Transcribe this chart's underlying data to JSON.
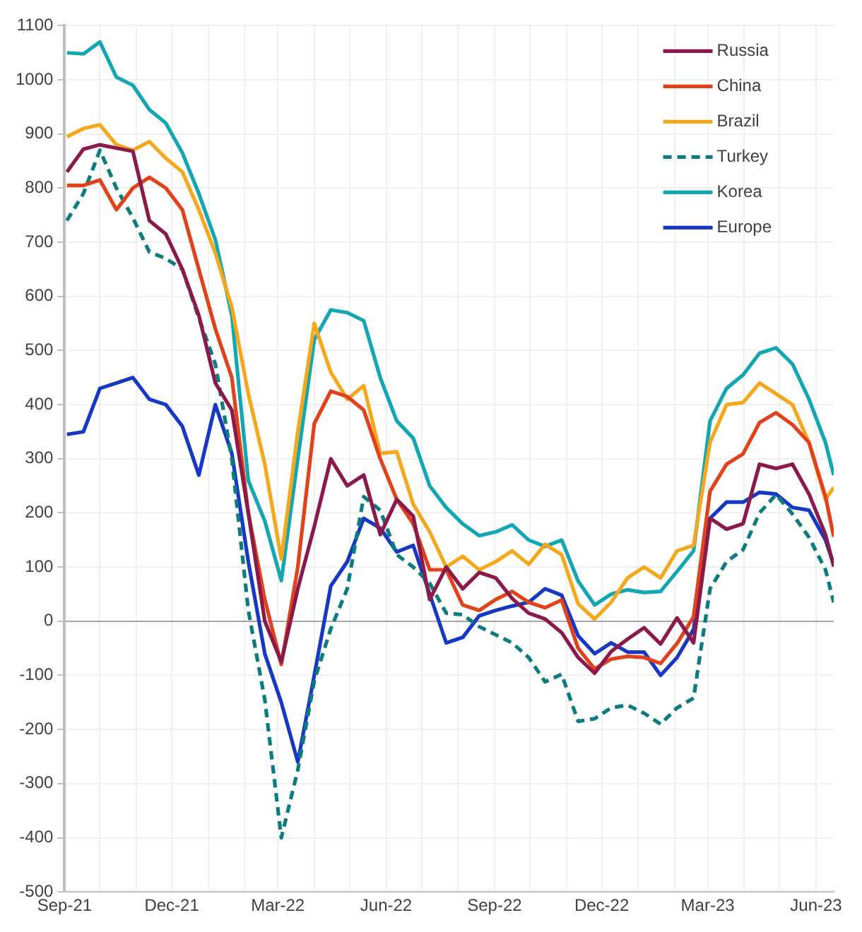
{
  "chart_data": {
    "type": "line",
    "x": [
      "2021-09-03",
      "2021-09-17",
      "2021-10-01",
      "2021-10-15",
      "2021-10-29",
      "2021-11-12",
      "2021-11-26",
      "2021-12-10",
      "2021-12-24",
      "2022-01-07",
      "2022-01-21",
      "2022-02-04",
      "2022-02-18",
      "2022-03-04",
      "2022-03-18",
      "2022-04-01",
      "2022-04-15",
      "2022-04-29",
      "2022-05-13",
      "2022-05-27",
      "2022-06-10",
      "2022-06-24",
      "2022-07-08",
      "2022-07-22",
      "2022-08-05",
      "2022-08-19",
      "2022-09-02",
      "2022-09-16",
      "2022-09-30",
      "2022-10-14",
      "2022-10-28",
      "2022-11-11",
      "2022-11-25",
      "2022-12-09",
      "2022-12-23",
      "2023-01-06",
      "2023-01-20",
      "2023-02-03",
      "2023-02-17",
      "2023-03-03",
      "2023-03-17",
      "2023-03-31",
      "2023-04-14",
      "2023-04-28",
      "2023-05-12",
      "2023-05-26",
      "2023-06-09",
      "2023-06-16"
    ],
    "series": [
      {
        "name": "Russia",
        "color": "#8b1a4b",
        "values": [
          830,
          872,
          880,
          874,
          868,
          740,
          715,
          650,
          565,
          440,
          390,
          200,
          0,
          -75,
          60,
          175,
          300,
          250,
          270,
          160,
          225,
          194,
          40,
          100,
          60,
          90,
          80,
          42,
          15,
          4,
          -21,
          -67,
          -96,
          -56,
          -33,
          -12,
          -42,
          6,
          -40,
          190,
          170,
          180,
          290,
          282,
          290,
          235,
          160,
          101
        ]
      },
      {
        "name": "China",
        "color": "#e2421b",
        "values": [
          805,
          805,
          815,
          760,
          800,
          820,
          800,
          760,
          650,
          540,
          450,
          200,
          40,
          -80,
          100,
          365,
          425,
          415,
          390,
          300,
          225,
          180,
          95,
          95,
          30,
          20,
          40,
          55,
          35,
          25,
          39,
          -50,
          -88,
          -70,
          -65,
          -67,
          -78,
          -41,
          8,
          240,
          290,
          309,
          367,
          385,
          363,
          330,
          230,
          156
        ]
      },
      {
        "name": "Brazil",
        "color": "#f5a81c",
        "values": [
          895,
          910,
          917,
          880,
          870,
          886,
          855,
          830,
          760,
          680,
          580,
          420,
          290,
          115,
          350,
          550,
          460,
          410,
          435,
          310,
          313,
          216,
          165,
          100,
          120,
          95,
          110,
          130,
          105,
          142,
          123,
          32,
          4,
          35,
          80,
          100,
          80,
          130,
          140,
          330,
          400,
          404,
          440,
          420,
          400,
          330,
          225,
          247
        ]
      },
      {
        "name": "Turkey",
        "color": "#0d7c80",
        "line_style": "dashed",
        "values": [
          740,
          790,
          870,
          800,
          745,
          682,
          670,
          650,
          560,
          475,
          300,
          20,
          -145,
          -400,
          -275,
          -110,
          -14,
          60,
          230,
          205,
          123,
          100,
          70,
          15,
          12,
          -10,
          -25,
          -40,
          -67,
          -112,
          -98,
          -185,
          -180,
          -160,
          -155,
          -170,
          -190,
          -160,
          -142,
          60,
          110,
          132,
          200,
          234,
          198,
          155,
          95,
          35
        ]
      },
      {
        "name": "Korea",
        "color": "#13a6b3",
        "values": [
          1050,
          1048,
          1070,
          1005,
          990,
          945,
          920,
          865,
          790,
          705,
          565,
          260,
          185,
          75,
          300,
          520,
          575,
          570,
          555,
          450,
          370,
          338,
          250,
          210,
          180,
          158,
          165,
          178,
          150,
          138,
          150,
          74,
          30,
          50,
          58,
          53,
          55,
          92,
          130,
          370,
          430,
          455,
          495,
          505,
          475,
          410,
          330,
          270
        ]
      },
      {
        "name": "Europe",
        "color": "#1738c4",
        "values": [
          345,
          350,
          430,
          440,
          450,
          410,
          400,
          360,
          270,
          400,
          310,
          110,
          -60,
          -150,
          -260,
          -100,
          65,
          110,
          190,
          172,
          128,
          140,
          50,
          -40,
          -30,
          10,
          20,
          28,
          35,
          60,
          48,
          -27,
          -60,
          -40,
          -57,
          -57,
          -100,
          -67,
          -15,
          190,
          220,
          220,
          238,
          235,
          210,
          205,
          150,
          105
        ]
      }
    ],
    "xlim": [
      "2021-09-01",
      "2023-06-16"
    ],
    "xticks": [
      {
        "value": "2021-09-01",
        "label": "Sep-21"
      },
      {
        "value": "2021-10-01",
        "label": null
      },
      {
        "value": "2021-11-01",
        "label": null
      },
      {
        "value": "2021-12-01",
        "label": "Dec-21"
      },
      {
        "value": "2022-01-01",
        "label": null
      },
      {
        "value": "2022-02-01",
        "label": null
      },
      {
        "value": "2022-03-01",
        "label": "Mar-22"
      },
      {
        "value": "2022-04-01",
        "label": null
      },
      {
        "value": "2022-05-01",
        "label": null
      },
      {
        "value": "2022-06-01",
        "label": "Jun-22"
      },
      {
        "value": "2022-07-01",
        "label": null
      },
      {
        "value": "2022-08-01",
        "label": null
      },
      {
        "value": "2022-09-01",
        "label": "Sep-22"
      },
      {
        "value": "2022-10-01",
        "label": null
      },
      {
        "value": "2022-11-01",
        "label": null
      },
      {
        "value": "2022-12-01",
        "label": "Dec-22"
      },
      {
        "value": "2023-01-01",
        "label": null
      },
      {
        "value": "2023-02-01",
        "label": null
      },
      {
        "value": "2023-03-01",
        "label": "Mar-23"
      },
      {
        "value": "2023-04-01",
        "label": null
      },
      {
        "value": "2023-05-01",
        "label": null
      },
      {
        "value": "2023-06-01",
        "label": "Jun-23"
      }
    ],
    "ylim": [
      -500,
      1100
    ],
    "yticks": [
      -500,
      -400,
      -300,
      -200,
      -100,
      0,
      100,
      200,
      300,
      400,
      500,
      600,
      700,
      800,
      900,
      1000,
      1100
    ],
    "grid": true,
    "legend": "top right"
  }
}
